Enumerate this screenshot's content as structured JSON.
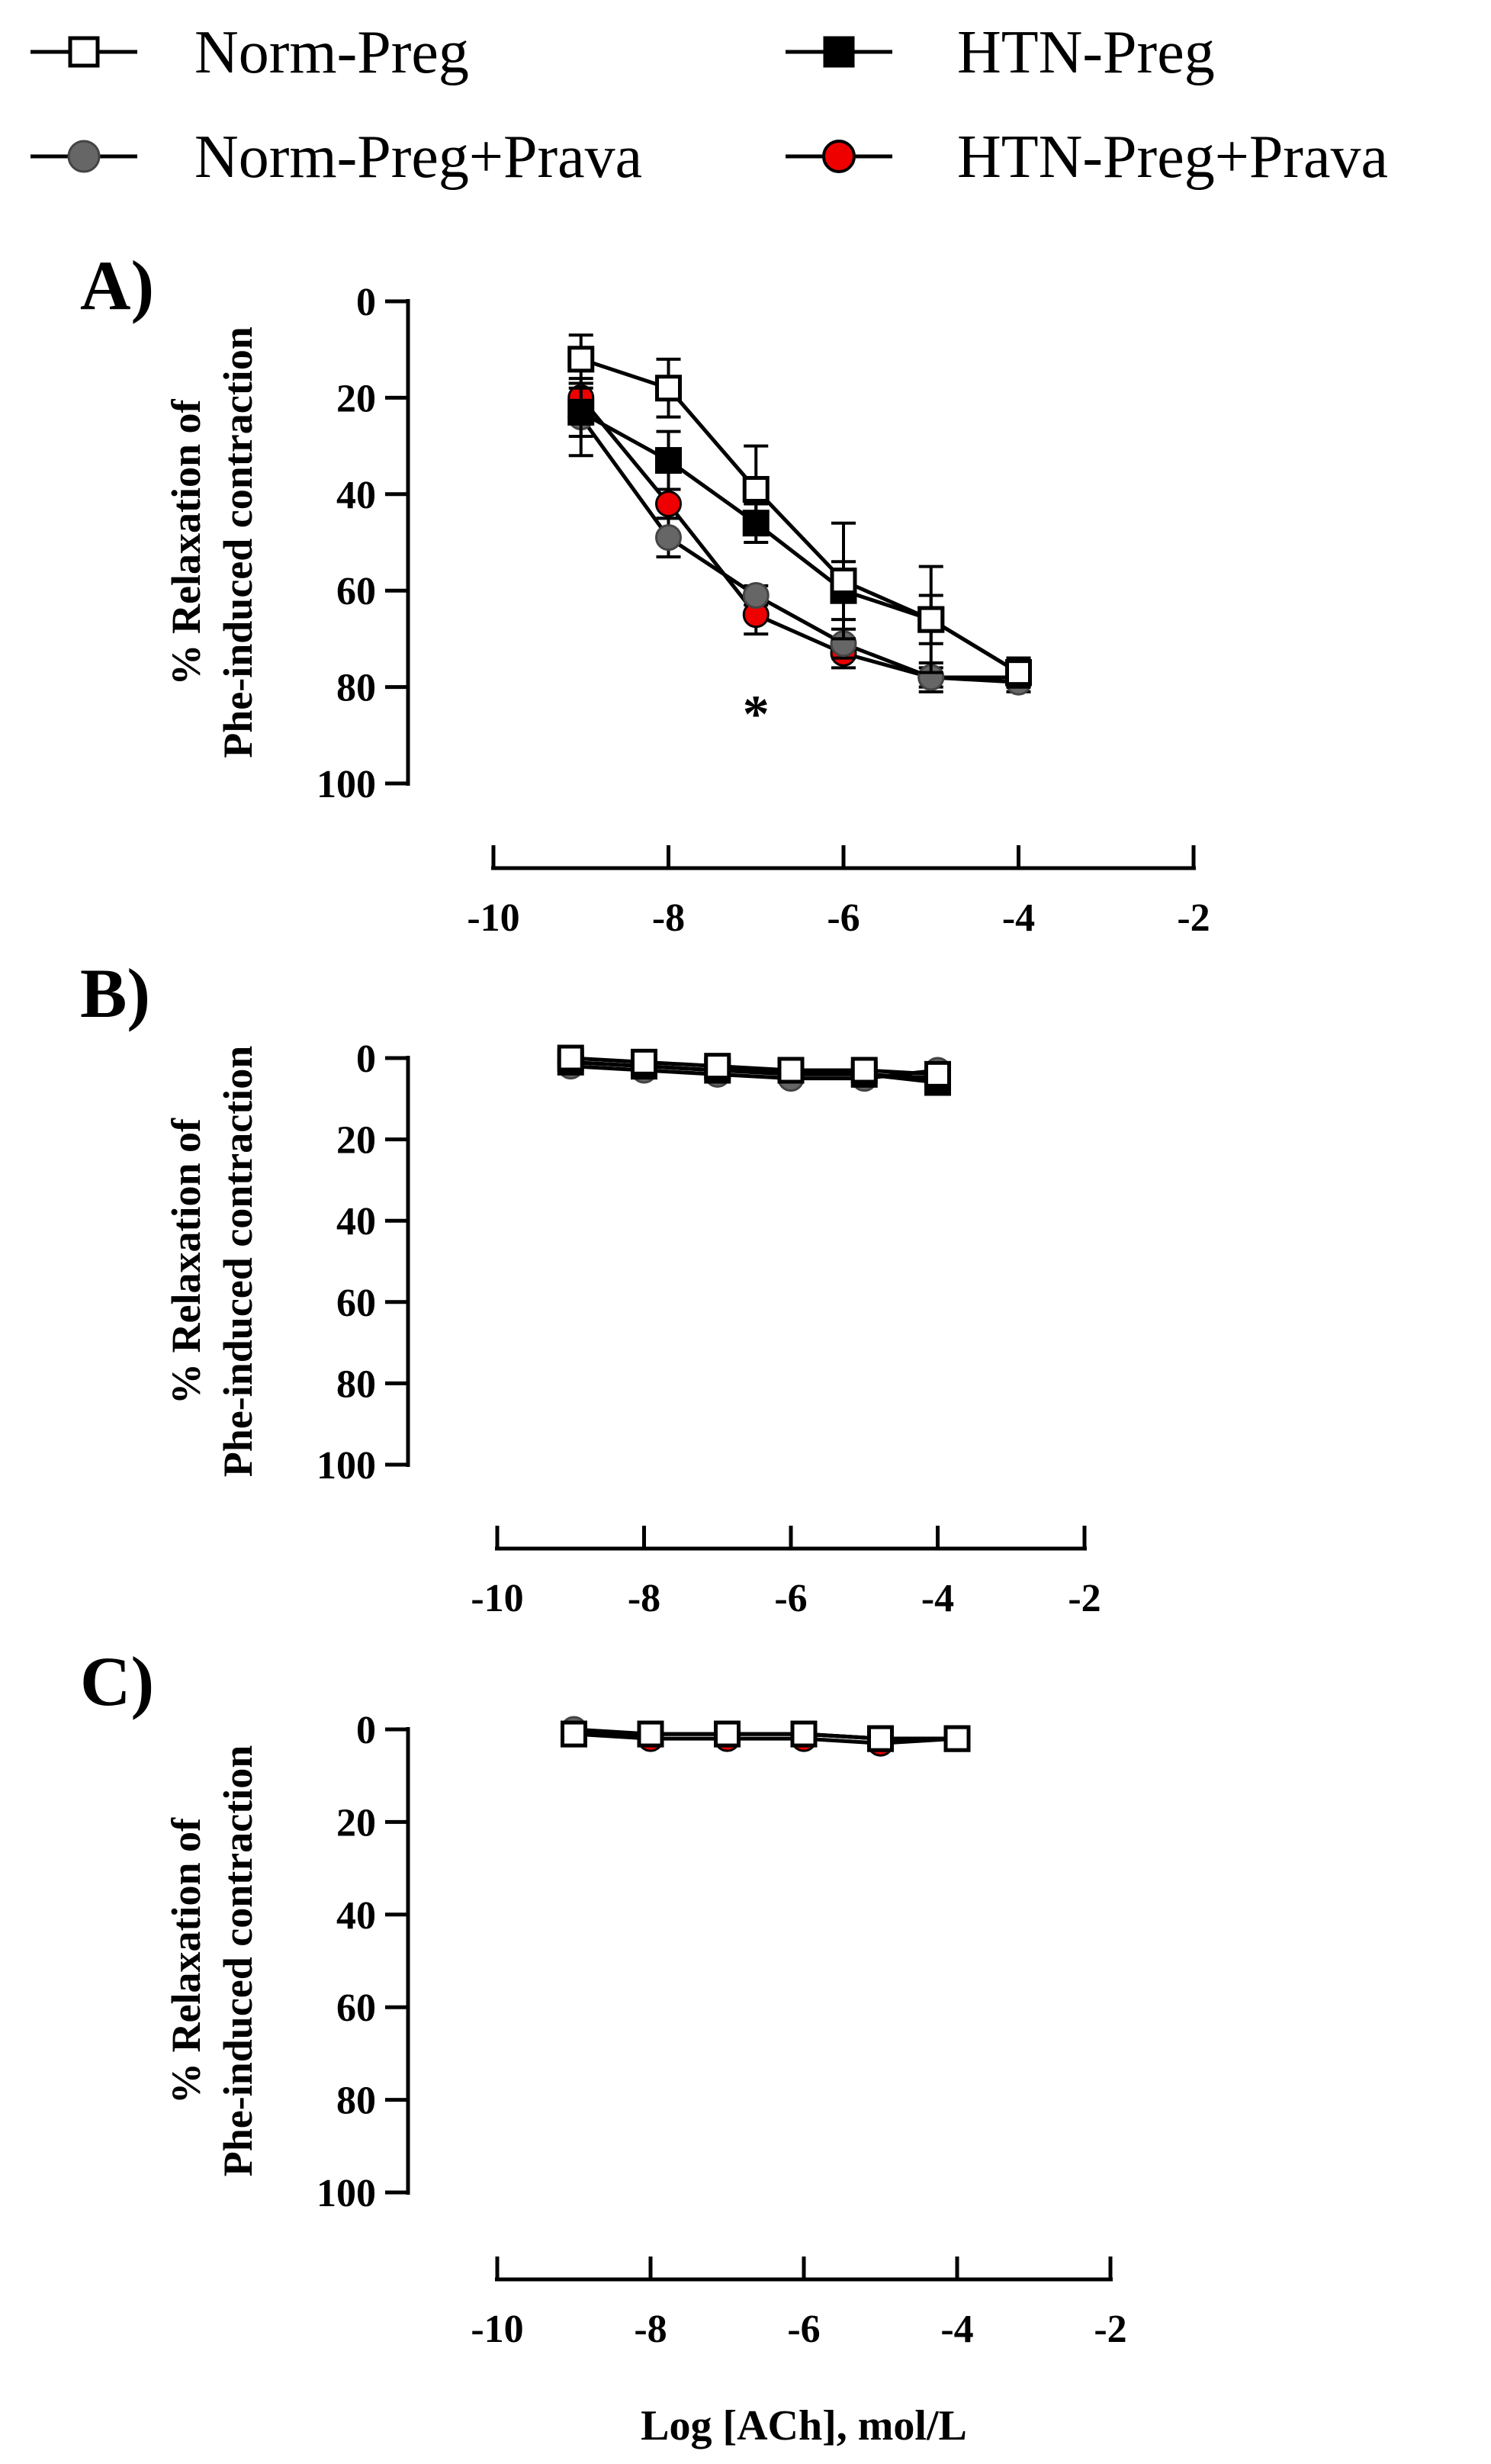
{
  "legend": {
    "entries": [
      {
        "label": "Norm-Preg",
        "marker": "square",
        "fill": "#ffffff"
      },
      {
        "label": "HTN-Preg",
        "marker": "square",
        "fill": "#000000"
      },
      {
        "label": "Norm-Preg+Prava",
        "marker": "circle",
        "fill": "#666666"
      },
      {
        "label": "HTN-Preg+Prava",
        "marker": "circle",
        "fill": "#ee0000"
      }
    ]
  },
  "colors": {
    "axis": "#000000",
    "norm": "#ffffff",
    "htn": "#000000",
    "norm_prava": "#666666",
    "htn_prava": "#ee0000"
  },
  "chart_data": [
    {
      "type": "line",
      "panel_label": "A)",
      "ylabel_line1": "% Relaxation of",
      "ylabel_line2": "Phe-induced contraction",
      "xlabel": "",
      "ylim": [
        0,
        100
      ],
      "y_inverted": true,
      "yticks": [
        "0",
        "20",
        "40",
        "60",
        "80",
        "100"
      ],
      "xlim": [
        -10,
        -2
      ],
      "xticks": [
        "-10",
        "-8",
        "-6",
        "-4",
        "-2"
      ],
      "x": [
        -9,
        -8,
        -7,
        -6,
        -5,
        -4
      ],
      "annotation": {
        "text": "*",
        "x": -7,
        "y": 83
      },
      "series": [
        {
          "name": "Norm-Preg",
          "values": [
            12,
            18,
            39,
            58,
            66,
            77
          ],
          "err": [
            5,
            6,
            9,
            12,
            11,
            3
          ]
        },
        {
          "name": "HTN-Preg",
          "values": [
            23,
            33,
            46,
            60,
            66,
            77
          ],
          "err": [
            5,
            6,
            4,
            6,
            5,
            3
          ]
        },
        {
          "name": "Norm-Preg+Prava",
          "values": [
            24,
            49,
            61,
            71,
            78,
            79
          ],
          "err": [
            8,
            4,
            2,
            3,
            3,
            2
          ]
        },
        {
          "name": "HTN-Preg+Prava",
          "values": [
            20,
            42,
            65,
            73,
            78,
            78
          ],
          "err": [
            3,
            3,
            4,
            3,
            2,
            2
          ]
        }
      ]
    },
    {
      "type": "line",
      "panel_label": "B)",
      "ylabel_line1": "% Relaxation of",
      "ylabel_line2": "Phe-induced contraction",
      "xlabel": "",
      "ylim": [
        0,
        100
      ],
      "y_inverted": true,
      "yticks": [
        "0",
        "20",
        "40",
        "60",
        "80",
        "100"
      ],
      "xlim": [
        -10,
        -2
      ],
      "xticks": [
        "-10",
        "-8",
        "-6",
        "-4",
        "-2"
      ],
      "x": [
        -9,
        -8,
        -7,
        -6,
        -5,
        -4
      ],
      "series": [
        {
          "name": "Norm-Preg",
          "values": [
            0,
            1,
            2,
            3,
            3,
            4
          ],
          "err": [
            0,
            0,
            0,
            0,
            0,
            0
          ]
        },
        {
          "name": "HTN-Preg",
          "values": [
            1,
            2,
            3,
            3,
            4,
            6
          ],
          "err": [
            0,
            0,
            0,
            0,
            0,
            0
          ]
        },
        {
          "name": "Norm-Preg+Prava",
          "values": [
            2,
            3,
            4,
            5,
            5,
            3
          ],
          "err": [
            0,
            0,
            0,
            0,
            0,
            0
          ]
        },
        {
          "name": "HTN-Preg+Prava",
          "values": [
            1,
            2,
            3,
            4,
            4,
            5
          ],
          "err": [
            0,
            0,
            0,
            0,
            0,
            0
          ]
        }
      ]
    },
    {
      "type": "line",
      "panel_label": "C)",
      "ylabel_line1": "% Relaxation of",
      "ylabel_line2": "Phe-induced contraction",
      "xlabel": "Log [ACh], mol/L",
      "ylim": [
        0,
        100
      ],
      "y_inverted": true,
      "yticks": [
        "0",
        "20",
        "40",
        "60",
        "80",
        "100"
      ],
      "xlim": [
        -10,
        -2
      ],
      "xticks": [
        "-10",
        "-8",
        "-6",
        "-4",
        "-2"
      ],
      "x": [
        -9,
        -8,
        -7,
        -6,
        -5,
        -4
      ],
      "series": [
        {
          "name": "Norm-Preg",
          "values": [
            1,
            1,
            1,
            1,
            2,
            2
          ],
          "err": [
            0,
            0,
            0,
            0,
            0,
            0
          ]
        },
        {
          "name": "HTN-Preg",
          "values": [
            1,
            1,
            1,
            1,
            2,
            2
          ],
          "err": [
            0,
            0,
            0,
            0,
            0,
            0
          ]
        },
        {
          "name": "Norm-Preg+Prava",
          "values": [
            0,
            1,
            1,
            1,
            2,
            2
          ],
          "err": [
            0,
            0,
            0,
            0,
            0,
            0
          ]
        },
        {
          "name": "HTN-Preg+Prava",
          "values": [
            1,
            2,
            2,
            2,
            3,
            2
          ],
          "err": [
            0,
            0,
            0,
            0,
            0,
            0
          ]
        }
      ]
    }
  ]
}
